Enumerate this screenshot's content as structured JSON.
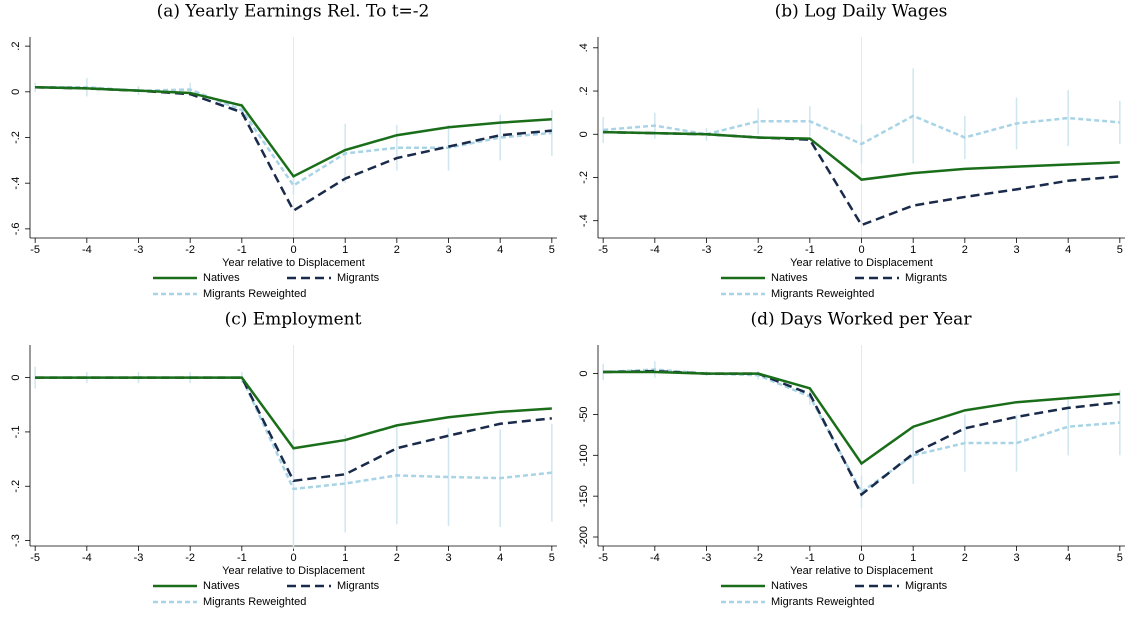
{
  "chart_data": [
    {
      "type": "line",
      "title": "(a) Yearly Earnings Rel. To t=-2",
      "x_label": "Year relative to Displacement",
      "x": [
        -5,
        -4,
        -3,
        -2,
        -1,
        0,
        1,
        2,
        3,
        4,
        5
      ],
      "xlim": [
        -5.1,
        5.1
      ],
      "xticks": [
        -5,
        -4,
        -3,
        -2,
        -1,
        0,
        1,
        2,
        3,
        4,
        5
      ],
      "ylim": [
        -0.64,
        0.24
      ],
      "yticks": [
        {
          "value": 0.2,
          "label": ".2"
        },
        0,
        {
          "value": -0.2,
          "label": "-.2"
        },
        {
          "value": -0.4,
          "label": "-.4"
        },
        {
          "value": -0.6,
          "label": "-.6"
        }
      ],
      "series": [
        {
          "name": "Natives",
          "color": "#1a6e1a",
          "dash": "solid",
          "values": [
            0.02,
            0.015,
            0.005,
            -0.005,
            -0.06,
            -0.37,
            -0.255,
            -0.19,
            -0.155,
            -0.135,
            -0.12
          ]
        },
        {
          "name": "Migrants",
          "color": "#1a2a4a",
          "dash": "long",
          "values": [
            0.02,
            0.015,
            0.005,
            -0.01,
            -0.09,
            -0.52,
            -0.38,
            -0.29,
            -0.24,
            -0.19,
            -0.17
          ]
        },
        {
          "name": "Migrants Reweighted",
          "color": "#a8d4e6",
          "dash": "short",
          "values": [
            0.02,
            0.02,
            0.005,
            0.01,
            -0.08,
            -0.41,
            -0.27,
            -0.245,
            -0.245,
            -0.2,
            -0.18
          ],
          "errors": [
            0.02,
            0.04,
            0.02,
            0.03,
            0.03,
            0.04,
            0.13,
            0.1,
            0.1,
            0.1,
            0.1
          ]
        }
      ]
    },
    {
      "type": "line",
      "title": "(b) Log Daily Wages",
      "x_label": "Year relative to Displacement",
      "x": [
        -5,
        -4,
        -3,
        -2,
        -1,
        0,
        1,
        2,
        3,
        4,
        5
      ],
      "xlim": [
        -5.1,
        5.1
      ],
      "xticks": [
        -5,
        -4,
        -3,
        -2,
        -1,
        0,
        1,
        2,
        3,
        4,
        5
      ],
      "ylim": [
        -0.48,
        0.45
      ],
      "yticks": [
        {
          "value": 0.4,
          "label": ".4"
        },
        {
          "value": 0.2,
          "label": ".2"
        },
        0,
        {
          "value": -0.2,
          "label": "-.2"
        },
        {
          "value": -0.4,
          "label": "-.4"
        }
      ],
      "series": [
        {
          "name": "Natives",
          "color": "#1a6e1a",
          "dash": "solid",
          "values": [
            0.01,
            0.005,
            0,
            -0.015,
            -0.02,
            -0.21,
            -0.18,
            -0.16,
            -0.15,
            -0.14,
            -0.13
          ]
        },
        {
          "name": "Migrants",
          "color": "#1a2a4a",
          "dash": "long",
          "values": [
            0.01,
            0.005,
            0,
            -0.015,
            -0.025,
            -0.42,
            -0.33,
            -0.29,
            -0.255,
            -0.215,
            -0.195
          ]
        },
        {
          "name": "Migrants Reweighted",
          "color": "#a8d4e6",
          "dash": "short",
          "values": [
            0.02,
            0.04,
            0,
            0.06,
            0.06,
            -0.045,
            0.085,
            -0.015,
            0.05,
            0.075,
            0.055
          ],
          "errors": [
            0.06,
            0.06,
            0.03,
            0.06,
            0.07,
            0.09,
            0.22,
            0.1,
            0.12,
            0.13,
            0.1
          ]
        }
      ]
    },
    {
      "type": "line",
      "title": "(c) Employment",
      "x_label": "Year relative to Displacement",
      "x": [
        -5,
        -4,
        -3,
        -2,
        -1,
        0,
        1,
        2,
        3,
        4,
        5
      ],
      "xlim": [
        -5.1,
        5.1
      ],
      "xticks": [
        -5,
        -4,
        -3,
        -2,
        -1,
        0,
        1,
        2,
        3,
        4,
        5
      ],
      "ylim": [
        -0.31,
        0.06
      ],
      "yticks": [
        0,
        {
          "value": -0.1,
          "label": "-.1"
        },
        {
          "value": -0.2,
          "label": "-.2"
        },
        {
          "value": -0.3,
          "label": "-.3"
        }
      ],
      "series": [
        {
          "name": "Natives",
          "color": "#1a6e1a",
          "dash": "solid",
          "values": [
            0,
            0,
            0,
            0,
            0,
            -0.13,
            -0.115,
            -0.088,
            -0.073,
            -0.063,
            -0.057
          ]
        },
        {
          "name": "Migrants",
          "color": "#1a2a4a",
          "dash": "long",
          "values": [
            0,
            0,
            0,
            0,
            0,
            -0.19,
            -0.178,
            -0.13,
            -0.107,
            -0.085,
            -0.075
          ]
        },
        {
          "name": "Migrants Reweighted",
          "color": "#a8d4e6",
          "dash": "short",
          "values": [
            0,
            0,
            0,
            0,
            0,
            -0.205,
            -0.195,
            -0.18,
            -0.183,
            -0.185,
            -0.175
          ],
          "errors": [
            0.02,
            0.01,
            0.01,
            0.01,
            0.01,
            0.11,
            0.09,
            0.09,
            0.09,
            0.09,
            0.09
          ]
        }
      ]
    },
    {
      "type": "line",
      "title": "(d) Days Worked per Year",
      "x_label": "Year relative to Displacement",
      "x": [
        -5,
        -4,
        -3,
        -2,
        -1,
        0,
        1,
        2,
        3,
        4,
        5
      ],
      "xlim": [
        -5.1,
        5.1
      ],
      "xticks": [
        -5,
        -4,
        -3,
        -2,
        -1,
        0,
        1,
        2,
        3,
        4,
        5
      ],
      "ylim": [
        -211,
        35
      ],
      "yticks": [
        0,
        -50,
        -100,
        -150,
        -200
      ],
      "series": [
        {
          "name": "Natives",
          "color": "#1a6e1a",
          "dash": "solid",
          "values": [
            2,
            2,
            0,
            0,
            -18,
            -110,
            -65,
            -45,
            -35,
            -30,
            -25
          ]
        },
        {
          "name": "Migrants",
          "color": "#1a2a4a",
          "dash": "long",
          "values": [
            2,
            3,
            0,
            0,
            -25,
            -148,
            -98,
            -67,
            -53,
            -42,
            -35
          ]
        },
        {
          "name": "Migrants Reweighted",
          "color": "#a8d4e6",
          "dash": "short",
          "values": [
            2,
            5,
            0,
            -2,
            -28,
            -145,
            -100,
            -85,
            -85,
            -65,
            -60
          ],
          "errors": [
            10,
            10,
            3,
            5,
            10,
            20,
            35,
            35,
            35,
            35,
            40
          ]
        }
      ]
    }
  ]
}
